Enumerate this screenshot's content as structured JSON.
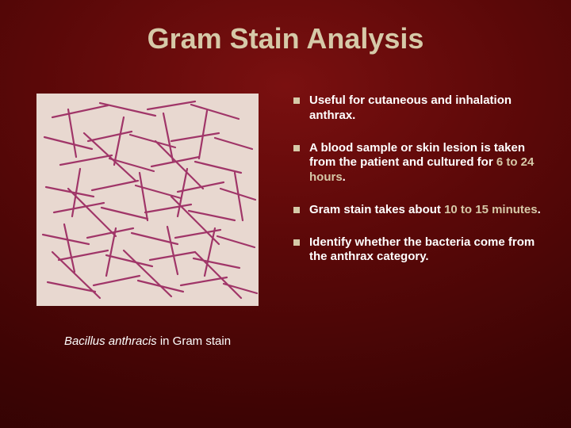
{
  "title": "Gram Stain Analysis",
  "title_color": "#d6c9a8",
  "title_fontsize": 36,
  "background_gradient": {
    "center_color": "#7a1010",
    "mid_color": "#5a0808",
    "edge_color": "#2a0202"
  },
  "image": {
    "description": "Bacillus anthracis Gram stain micrograph",
    "background_color": "#e8d8d0",
    "rod_color": "#a03568",
    "rod_stroke_width": 2.2,
    "rods": [
      [
        20,
        30,
        90,
        15
      ],
      [
        80,
        12,
        150,
        28
      ],
      [
        140,
        20,
        200,
        10
      ],
      [
        195,
        14,
        255,
        32
      ],
      [
        10,
        55,
        70,
        70
      ],
      [
        65,
        60,
        120,
        48
      ],
      [
        118,
        52,
        175,
        68
      ],
      [
        170,
        60,
        230,
        50
      ],
      [
        225,
        56,
        272,
        70
      ],
      [
        30,
        90,
        95,
        78
      ],
      [
        92,
        82,
        148,
        98
      ],
      [
        145,
        92,
        205,
        80
      ],
      [
        200,
        86,
        258,
        100
      ],
      [
        12,
        118,
        72,
        130
      ],
      [
        70,
        122,
        128,
        110
      ],
      [
        125,
        116,
        182,
        132
      ],
      [
        178,
        124,
        236,
        112
      ],
      [
        232,
        120,
        276,
        134
      ],
      [
        22,
        150,
        85,
        138
      ],
      [
        82,
        144,
        140,
        158
      ],
      [
        137,
        150,
        195,
        140
      ],
      [
        192,
        148,
        250,
        160
      ],
      [
        8,
        178,
        66,
        190
      ],
      [
        64,
        182,
        122,
        170
      ],
      [
        120,
        176,
        178,
        190
      ],
      [
        175,
        182,
        232,
        172
      ],
      [
        228,
        180,
        275,
        194
      ],
      [
        28,
        210,
        90,
        198
      ],
      [
        88,
        204,
        146,
        218
      ],
      [
        143,
        210,
        200,
        200
      ],
      [
        198,
        208,
        256,
        220
      ],
      [
        14,
        238,
        74,
        250
      ],
      [
        72,
        242,
        130,
        230
      ],
      [
        128,
        236,
        185,
        250
      ],
      [
        182,
        242,
        240,
        232
      ],
      [
        236,
        240,
        278,
        252
      ],
      [
        40,
        20,
        50,
        80
      ],
      [
        110,
        30,
        98,
        90
      ],
      [
        160,
        25,
        172,
        85
      ],
      [
        215,
        22,
        205,
        82
      ],
      [
        55,
        95,
        45,
        155
      ],
      [
        130,
        100,
        140,
        160
      ],
      [
        190,
        95,
        178,
        155
      ],
      [
        250,
        100,
        260,
        160
      ],
      [
        35,
        165,
        48,
        225
      ],
      [
        100,
        170,
        88,
        230
      ],
      [
        165,
        168,
        178,
        228
      ],
      [
        225,
        170,
        212,
        230
      ],
      [
        60,
        50,
        125,
        110
      ],
      [
        150,
        60,
        210,
        120
      ],
      [
        40,
        120,
        100,
        180
      ],
      [
        170,
        130,
        230,
        190
      ],
      [
        20,
        200,
        80,
        258
      ],
      [
        110,
        198,
        170,
        256
      ],
      [
        200,
        200,
        258,
        258
      ]
    ]
  },
  "caption": {
    "italic_part": "Bacillus anthracis",
    "rest": " in Gram stain",
    "fontsize": 15
  },
  "bullets": {
    "marker_color": "#d6c9a8",
    "highlight_color": "#d6c9a8",
    "text_color": "#ffffff",
    "fontsize": 15,
    "items": [
      {
        "segments": [
          {
            "text": "Useful for cutaneous and inhalation anthrax.",
            "hl": false
          }
        ]
      },
      {
        "segments": [
          {
            "text": "A blood sample or skin lesion is taken from the patient and cultured for ",
            "hl": false
          },
          {
            "text": "6 to 24 hours",
            "hl": true
          },
          {
            "text": ".",
            "hl": false
          }
        ]
      },
      {
        "segments": [
          {
            "text": "Gram stain takes about ",
            "hl": false
          },
          {
            "text": "10 to 15 minutes",
            "hl": true
          },
          {
            "text": ".",
            "hl": false
          }
        ]
      },
      {
        "segments": [
          {
            "text": "Identify whether the bacteria come from the anthrax category.",
            "hl": false
          }
        ]
      }
    ]
  }
}
